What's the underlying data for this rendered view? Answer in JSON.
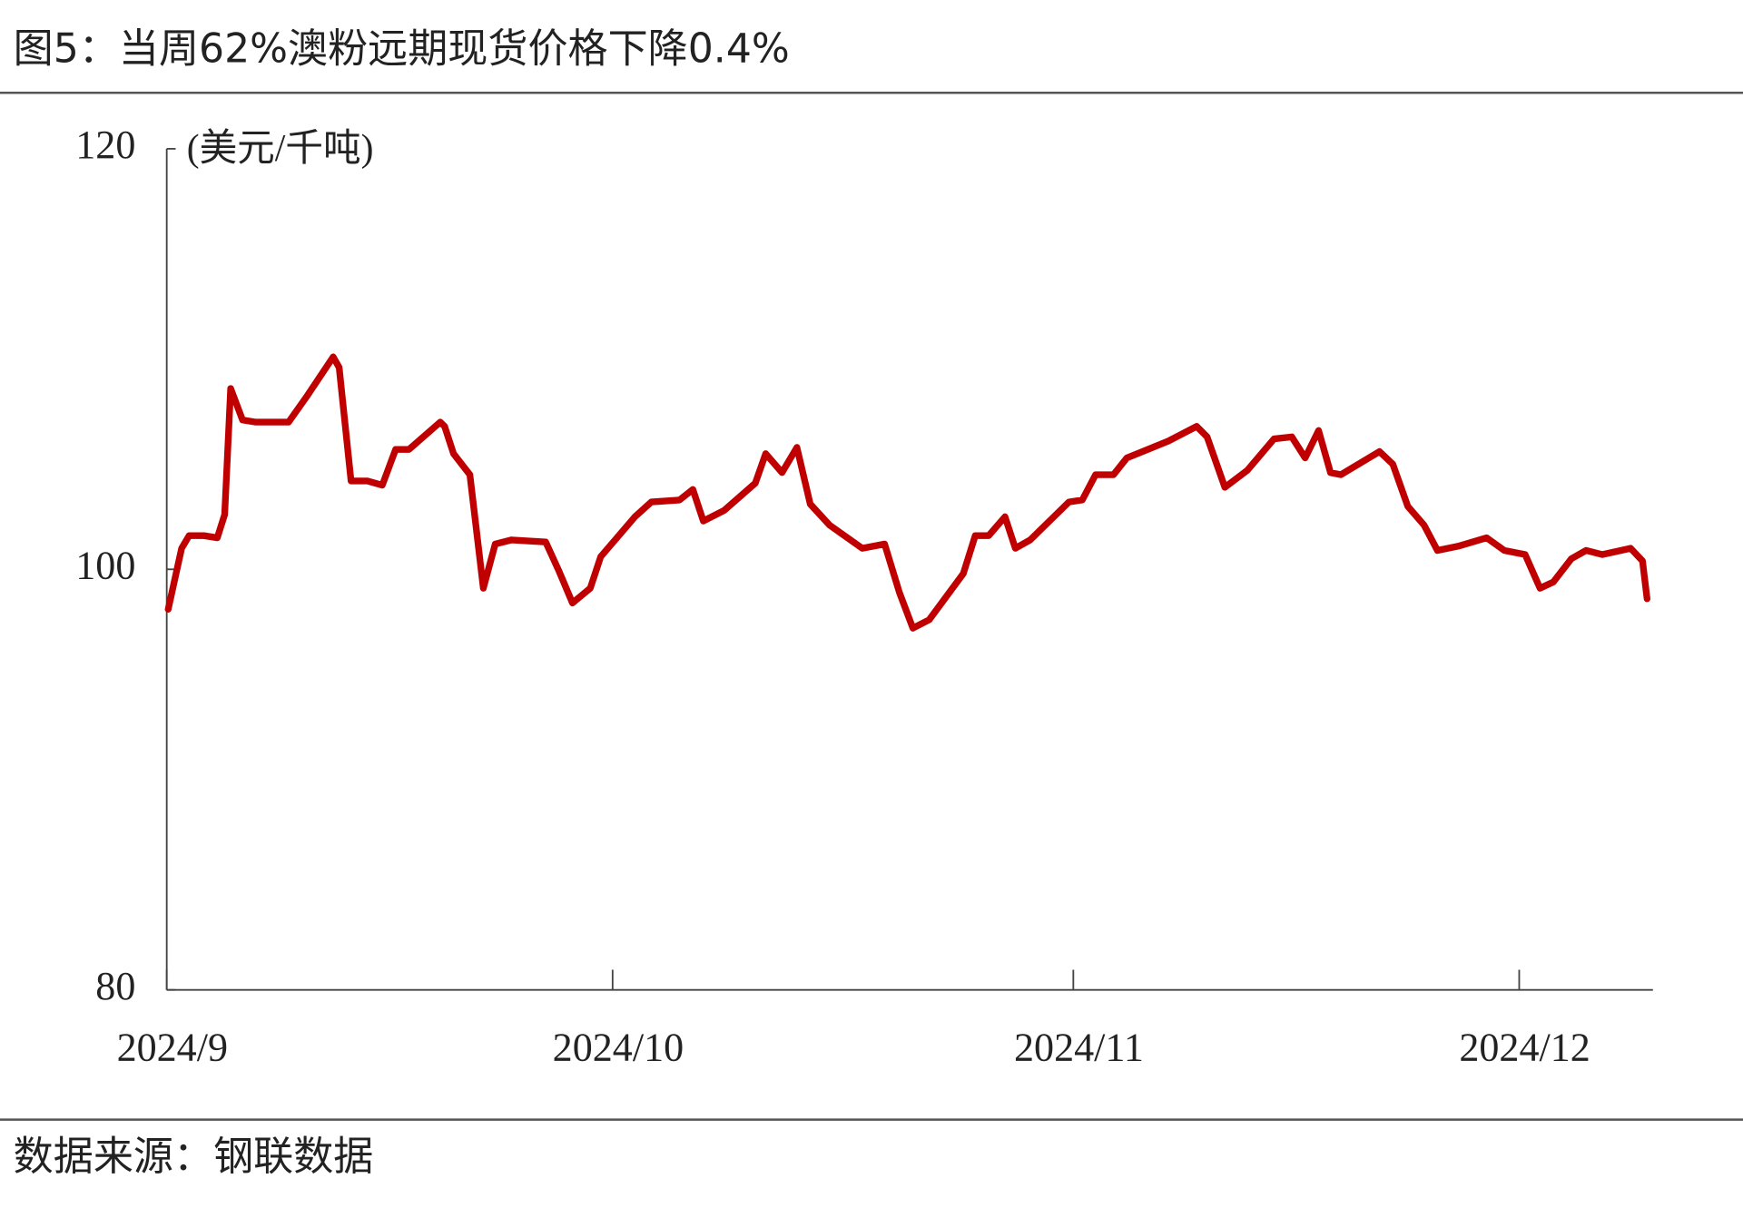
{
  "chart_data": {
    "type": "line",
    "title": "图5：当周62%澳粉远期现货价格下降0.4%",
    "y_label": "(美元/千吨)",
    "source": "数据来源：钢联数据",
    "x": [
      0.1,
      1.0,
      1.5,
      2.5,
      3.4,
      3.9,
      4.3,
      5.1,
      6.0,
      8.2,
      9.4,
      11.2,
      11.6,
      12.4,
      13.5,
      14.5,
      15.4,
      16.3,
      18.4,
      18.7,
      19.3,
      20.4,
      21.3,
      22.1,
      23.2,
      25.5,
      26.4,
      27.3,
      28.5,
      29.2,
      31.5,
      32.6,
      34.5,
      35.4,
      36.1,
      37.5,
      39.6,
      40.3,
      41.4,
      42.4,
      43.3,
      44.6,
      46.8,
      48.3,
      49.3,
      50.2,
      51.3,
      53.6,
      54.4,
      55.3,
      56.4,
      57.1,
      58.1,
      60.7,
      61.6,
      62.5,
      63.7,
      64.6,
      67.4,
      69.3,
      70.0,
      71.2,
      72.7,
      74.5,
      75.7,
      76.6,
      77.5,
      78.3,
      79.0,
      81.6,
      82.5,
      83.5,
      84.6,
      85.5,
      86.9,
      88.8,
      90.0,
      91.4,
      92.4,
      93.3,
      94.5,
      95.5,
      96.6,
      98.5,
      99.3,
      99.6
    ],
    "series": [
      {
        "name": "62%澳粉远期现货价格",
        "color": "#c00000",
        "values": [
          98.1,
          101.0,
          101.6,
          101.6,
          101.5,
          102.6,
          108.6,
          107.1,
          107.0,
          107.0,
          108.2,
          110.1,
          109.6,
          104.2,
          104.2,
          104.0,
          105.7,
          105.7,
          107.0,
          106.8,
          105.5,
          104.5,
          99.1,
          101.2,
          101.4,
          101.3,
          99.9,
          98.4,
          99.1,
          100.6,
          102.5,
          103.2,
          103.3,
          103.8,
          102.3,
          102.8,
          104.1,
          105.5,
          104.6,
          105.8,
          103.1,
          102.1,
          101.0,
          101.2,
          98.9,
          97.2,
          97.6,
          99.8,
          101.6,
          101.6,
          102.5,
          101.0,
          101.4,
          103.2,
          103.3,
          104.5,
          104.5,
          105.3,
          106.1,
          106.8,
          106.3,
          103.9,
          104.7,
          106.2,
          106.3,
          105.3,
          106.6,
          104.6,
          104.5,
          105.6,
          105.0,
          103.0,
          102.1,
          100.9,
          101.1,
          101.5,
          100.9,
          100.7,
          99.1,
          99.4,
          100.5,
          100.9,
          100.7,
          101.0,
          100.4,
          98.6
        ]
      }
    ],
    "xlim": [
      0,
      100
    ],
    "xticks": [
      {
        "value": 0,
        "label": "2024/9"
      },
      {
        "value": 30,
        "label": "2024/10"
      },
      {
        "value": 61,
        "label": "2024/11"
      },
      {
        "value": 91,
        "label": "2024/12"
      }
    ],
    "ylim": [
      80,
      120
    ],
    "yticks": [
      80,
      100,
      120
    ]
  }
}
